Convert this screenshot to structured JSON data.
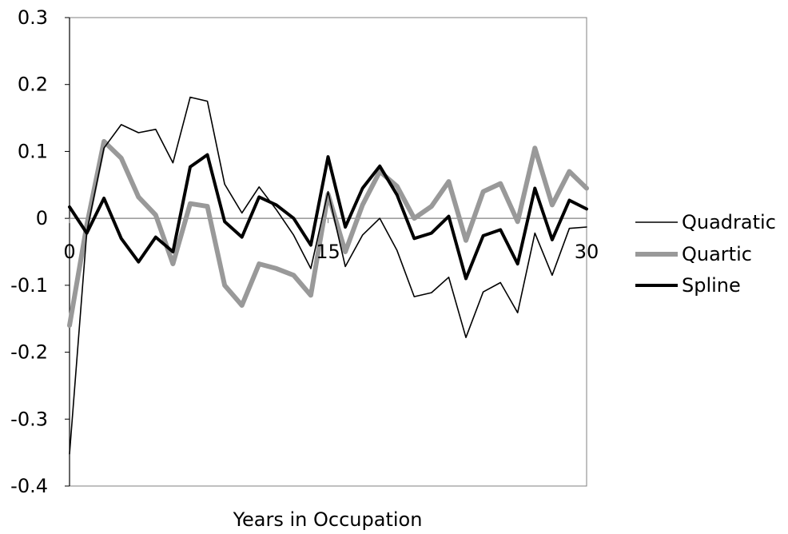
{
  "chart_data": {
    "type": "line",
    "title": "",
    "xlabel": "Years in Occupation",
    "ylabel": "",
    "xlim": [
      0,
      30
    ],
    "ylim": [
      -0.4,
      0.3
    ],
    "x_ticks": [
      {
        "value": 0,
        "label": "0"
      },
      {
        "value": 15,
        "label": "15"
      },
      {
        "value": 30,
        "label": "30"
      }
    ],
    "y_ticks": [
      {
        "value": 0.3,
        "label": "0.3"
      },
      {
        "value": 0.2,
        "label": "0.2"
      },
      {
        "value": 0.1,
        "label": "0.1"
      },
      {
        "value": 0.0,
        "label": "0"
      },
      {
        "value": -0.1,
        "label": "-0.1"
      },
      {
        "value": -0.2,
        "label": "-0.2"
      },
      {
        "value": -0.3,
        "label": "-0.3"
      },
      {
        "value": -0.4,
        "label": "-0.4"
      }
    ],
    "grid": false,
    "legend_position": "right",
    "x": [
      0,
      1,
      2,
      3,
      4,
      5,
      6,
      7,
      8,
      9,
      10,
      11,
      12,
      13,
      14,
      15,
      16,
      17,
      18,
      19,
      20,
      21,
      22,
      23,
      24,
      25,
      26,
      27,
      28,
      29,
      30
    ],
    "series": [
      {
        "name": "Quadratic",
        "color": "#000000",
        "style": "thin",
        "values": [
          -0.352,
          -0.02,
          0.105,
          0.14,
          0.128,
          0.133,
          0.083,
          0.181,
          0.175,
          0.051,
          0.008,
          0.047,
          0.013,
          -0.025,
          -0.075,
          0.04,
          -0.072,
          -0.025,
          0.0,
          -0.048,
          -0.117,
          -0.111,
          -0.088,
          -0.178,
          -0.11,
          -0.096,
          -0.141,
          -0.022,
          -0.085,
          -0.015,
          -0.013
        ]
      },
      {
        "name": "Quartic",
        "color": "#999999",
        "style": "thick",
        "values": [
          -0.16,
          -0.01,
          0.115,
          0.09,
          0.032,
          0.005,
          -0.068,
          0.022,
          0.018,
          -0.1,
          -0.13,
          -0.068,
          -0.075,
          -0.085,
          -0.115,
          0.036,
          -0.05,
          0.02,
          0.07,
          0.048,
          0.0,
          0.018,
          0.055,
          -0.033,
          0.04,
          0.052,
          -0.005,
          0.105,
          0.02,
          0.07,
          0.045
        ]
      },
      {
        "name": "Spline",
        "color": "#000000",
        "style": "medium",
        "values": [
          0.017,
          -0.022,
          0.03,
          -0.03,
          -0.065,
          -0.028,
          -0.05,
          0.077,
          0.095,
          -0.005,
          -0.028,
          0.032,
          0.02,
          0.0,
          -0.04,
          0.092,
          -0.013,
          0.045,
          0.078,
          0.035,
          -0.03,
          -0.022,
          0.003,
          -0.09,
          -0.026,
          -0.017,
          -0.068,
          0.045,
          -0.032,
          0.027,
          0.014
        ]
      }
    ]
  }
}
